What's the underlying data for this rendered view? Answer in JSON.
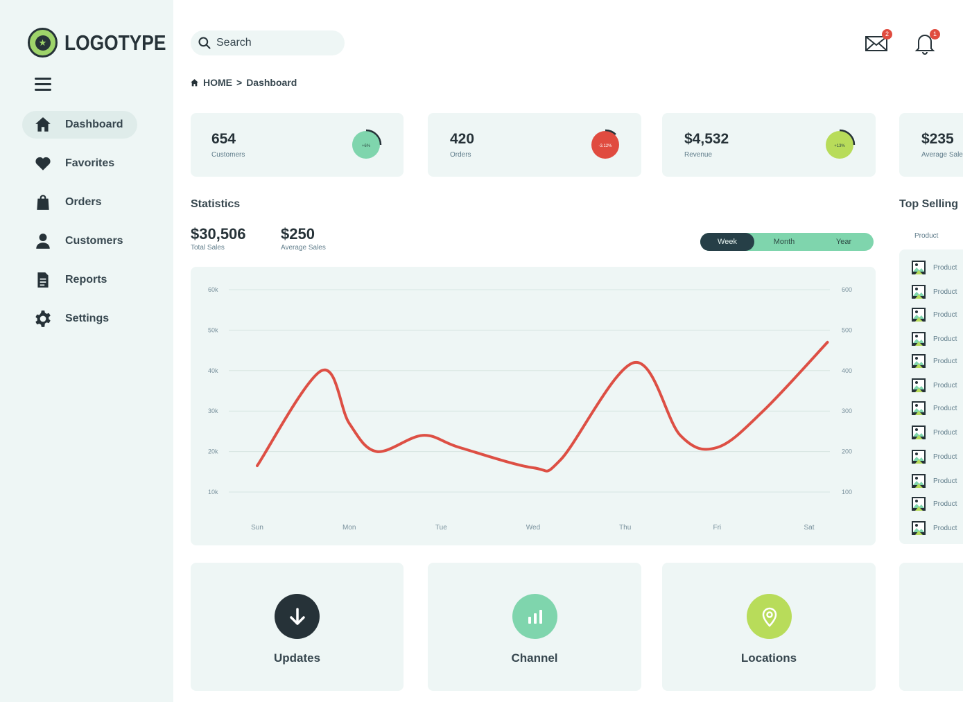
{
  "brand": {
    "name": "LOGOTYPE"
  },
  "sidebar": {
    "items": [
      {
        "label": "Dashboard",
        "icon": "home-icon",
        "active": true
      },
      {
        "label": "Favorites",
        "icon": "heart-icon"
      },
      {
        "label": "Orders",
        "icon": "shopping-bag-icon"
      },
      {
        "label": "Customers",
        "icon": "user-icon"
      },
      {
        "label": "Reports",
        "icon": "document-icon"
      },
      {
        "label": "Settings",
        "icon": "gear-icon"
      }
    ]
  },
  "header": {
    "search_placeholder": "Search",
    "mail_badge": "2",
    "bell_badge": "1"
  },
  "breadcrumb": {
    "home": "HOME",
    "separator": ">",
    "current": "Dashboard"
  },
  "stats": [
    {
      "value": "654",
      "label": "Customers",
      "ring_text": "+6%",
      "color": "#7fd5ad"
    },
    {
      "value": "420",
      "label": "Orders",
      "ring_text": "-3.12%",
      "color": "#e04b3f"
    },
    {
      "value": "$4,532",
      "label": "Revenue",
      "ring_text": "+13%",
      "color": "#b8dc5a"
    },
    {
      "value": "$235",
      "label": "Average Sale"
    }
  ],
  "statistics": {
    "title": "Statistics",
    "total_sales": "$30,506",
    "total_sales_label": "Total Sales",
    "avg_sales": "$250",
    "avg_sales_label": "Average Sales",
    "periods": [
      "Week",
      "Month",
      "Year"
    ],
    "selected_period": "Week"
  },
  "chart_data": {
    "type": "line",
    "categories": [
      "Sun",
      "Mon",
      "Tue",
      "Wed",
      "Thu",
      "Fri",
      "Sat"
    ],
    "y_ticks_left": [
      "60k",
      "50k",
      "40k",
      "30k",
      "20k",
      "10k"
    ],
    "y_ticks_right": [
      "600",
      "500",
      "400",
      "300",
      "200",
      "100"
    ],
    "ylim": [
      10,
      60
    ],
    "series": [
      {
        "color": "#dd4f44",
        "x": [
          0,
          0.7,
          1.0,
          1.3,
          1.8,
          2.2,
          3.0,
          3.3,
          4.1,
          4.6,
          5.0,
          5.5,
          6.2
        ],
        "values": [
          16.5,
          40,
          27,
          20,
          24,
          21,
          16,
          18,
          42,
          24,
          21,
          30,
          47
        ]
      }
    ],
    "grid": true
  },
  "top_selling": {
    "title": "Top Selling",
    "column": "Product",
    "items": [
      "Product",
      "Product",
      "Product",
      "Product",
      "Product",
      "Product",
      "Product",
      "Product",
      "Product",
      "Product",
      "Product",
      "Product"
    ]
  },
  "bottom_cards": [
    {
      "label": "Updates",
      "icon": "download-arrow-icon",
      "color": "#263238"
    },
    {
      "label": "Channel",
      "icon": "bar-chart-icon",
      "color": "#7fd5ad"
    },
    {
      "label": "Locations",
      "icon": "location-pin-icon",
      "color": "#b8dc5a"
    }
  ]
}
